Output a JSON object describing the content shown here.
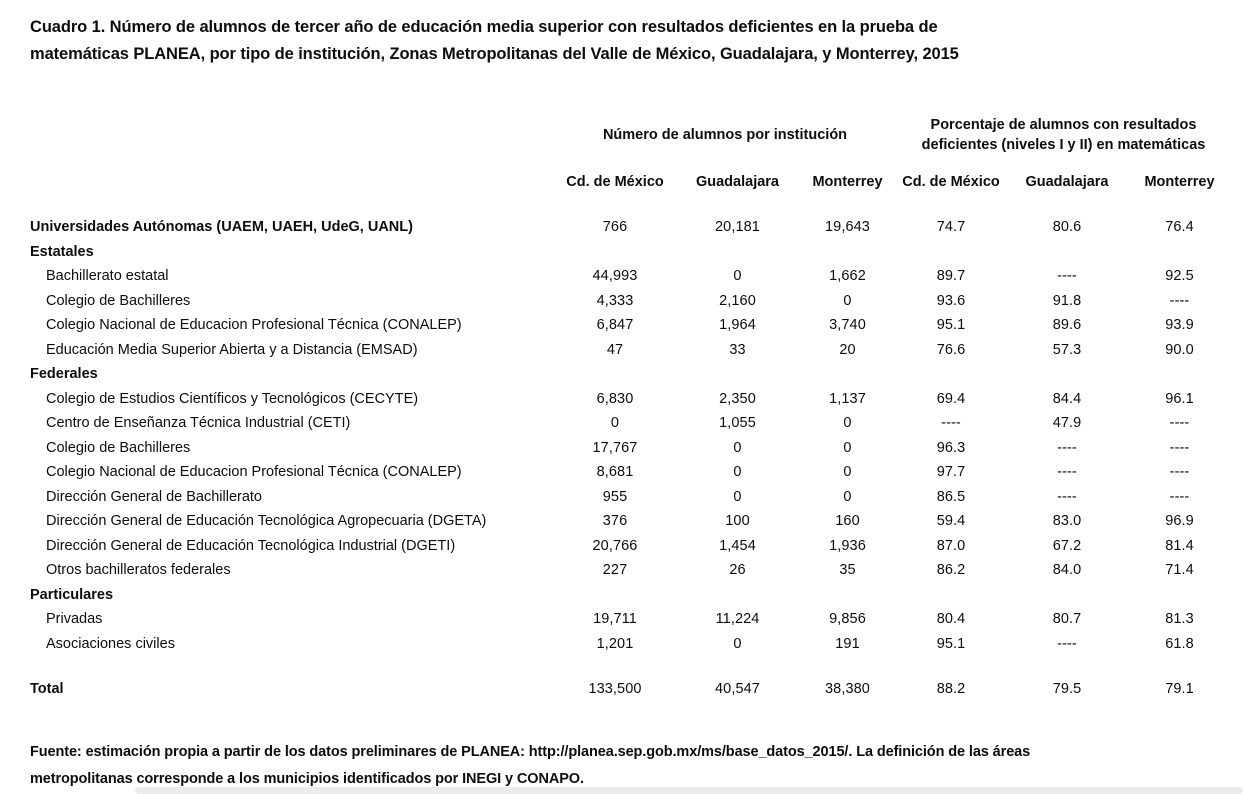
{
  "page": {
    "title_line1": "Cuadro 1. Número de alumnos de tercer año de educación media superior con resultados deficientes en la prueba de",
    "title_line2": "matemáticas PLANEA, por tipo de institución, Zonas Metropolitanas del Valle de México, Guadalajara, y Monterrey, 2015",
    "footer_line1": "Fuente: estimación propia a partir de los datos preliminares de PLANEA: http://planea.sep.gob.mx/ms/base_datos_2015/. La definición de las áreas",
    "footer_line2": "metropolitanas corresponde a los municipios identificados por INEGI y CONAPO."
  },
  "table": {
    "group_headers": {
      "alumnos": "Número de alumnos por institución",
      "porcentaje": "Porcentaje de alumnos con resultados deficientes (niveles I y II) en matemáticas"
    },
    "col_headers": [
      "Cd. de México",
      "Guadalajara",
      "Monterrey",
      "Cd. de México",
      "Guadalajara",
      "Monterrey"
    ],
    "rows": [
      {
        "style": "group-data",
        "label": "Universidades Autónomas (UAEM, UAEH, UdeG, UANL)",
        "values": [
          "766",
          "20,181",
          "19,643",
          "74.7",
          "80.6",
          "76.4"
        ]
      },
      {
        "style": "group",
        "label": "Estatales",
        "values": [
          "",
          "",
          "",
          "",
          "",
          ""
        ]
      },
      {
        "style": "item",
        "label": "Bachillerato estatal",
        "values": [
          "44,993",
          "0",
          "1,662",
          "89.7",
          "----",
          "92.5"
        ]
      },
      {
        "style": "item",
        "label": "Colegio de Bachilleres",
        "values": [
          "4,333",
          "2,160",
          "0",
          "93.6",
          "91.8",
          "----"
        ]
      },
      {
        "style": "item",
        "label": "Colegio Nacional de Educacion Profesional Técnica (CONALEP)",
        "values": [
          "6,847",
          "1,964",
          "3,740",
          "95.1",
          "89.6",
          "93.9"
        ]
      },
      {
        "style": "item",
        "label": "Educación Media Superior Abierta y a Distancia (EMSAD)",
        "values": [
          "47",
          "33",
          "20",
          "76.6",
          "57.3",
          "90.0"
        ]
      },
      {
        "style": "group",
        "label": "Federales",
        "values": [
          "",
          "",
          "",
          "",
          "",
          ""
        ]
      },
      {
        "style": "item",
        "label": "Colegio de Estudios Científicos y Tecnológicos (CECYTE)",
        "values": [
          "6,830",
          "2,350",
          "1,137",
          "69.4",
          "84.4",
          "96.1"
        ]
      },
      {
        "style": "item",
        "label": "Centro de Enseñanza Técnica Industrial (CETI)",
        "values": [
          "0",
          "1,055",
          "0",
          "----",
          "47.9",
          "----"
        ]
      },
      {
        "style": "item",
        "label": "Colegio de Bachilleres",
        "values": [
          "17,767",
          "0",
          "0",
          "96.3",
          "----",
          "----"
        ]
      },
      {
        "style": "item",
        "label": "Colegio Nacional de Educacion Profesional Técnica (CONALEP)",
        "values": [
          "8,681",
          "0",
          "0",
          "97.7",
          "----",
          "----"
        ]
      },
      {
        "style": "item",
        "label": "Dirección General de Bachillerato",
        "values": [
          "955",
          "0",
          "0",
          "86.5",
          "----",
          "----"
        ]
      },
      {
        "style": "item",
        "label": "Dirección General de Educación Tecnológica Agropecuaria (DGETA)",
        "values": [
          "376",
          "100",
          "160",
          "59.4",
          "83.0",
          "96.9"
        ]
      },
      {
        "style": "item",
        "label": "Dirección General de Educación Tecnológica Industrial (DGETI)",
        "values": [
          "20,766",
          "1,454",
          "1,936",
          "87.0",
          "67.2",
          "81.4"
        ]
      },
      {
        "style": "item",
        "label": "Otros bachilleratos federales",
        "values": [
          "227",
          "26",
          "35",
          "86.2",
          "84.0",
          "71.4"
        ]
      },
      {
        "style": "group",
        "label": "Particulares",
        "values": [
          "",
          "",
          "",
          "",
          "",
          ""
        ]
      },
      {
        "style": "item",
        "label": "Privadas",
        "values": [
          "19,711",
          "11,224",
          "9,856",
          "80.4",
          "80.7",
          "81.3"
        ]
      },
      {
        "style": "item",
        "label": "Asociaciones civiles",
        "values": [
          "1,201",
          "0",
          "191",
          "95.1",
          "----",
          "61.8"
        ]
      },
      {
        "style": "spacer",
        "label": "",
        "values": [
          "",
          "",
          "",
          "",
          "",
          ""
        ]
      },
      {
        "style": "total",
        "label": "Total",
        "values": [
          "133,500",
          "40,547",
          "38,380",
          "88.2",
          "79.5",
          "79.1"
        ]
      }
    ]
  }
}
